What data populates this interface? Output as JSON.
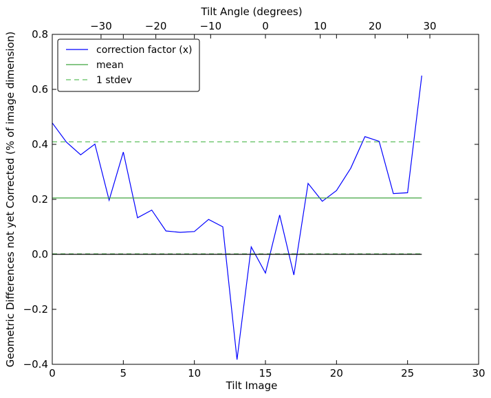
{
  "chart_data": {
    "type": "line",
    "xlabel": "Tilt Image",
    "ylabel": "Geometric Differences not yet Corrected (% of image dimension)",
    "top_xlabel": "Tilt Angle (degrees)",
    "xlim": [
      0,
      30
    ],
    "ylim": [
      -0.4,
      0.8
    ],
    "top_xlim": [
      -38.9,
      38.9
    ],
    "grid": false,
    "legend_position": "top-left",
    "x_ticks": [
      0,
      5,
      10,
      15,
      20,
      25,
      30
    ],
    "x_tick_labels": [
      "0",
      "5",
      "10",
      "15",
      "20",
      "25",
      "30"
    ],
    "y_ticks": [
      -0.4,
      -0.2,
      0.0,
      0.2,
      0.4,
      0.6,
      0.8
    ],
    "y_tick_labels": [
      "−0.4",
      "−0.2",
      "0.0",
      "0.2",
      "0.4",
      "0.6",
      "0.8"
    ],
    "top_x_ticks": [
      -30,
      -20,
      -10,
      0,
      10,
      20,
      30
    ],
    "top_x_tick_labels": [
      "−30",
      "−20",
      "−10",
      "0",
      "10",
      "20",
      "30"
    ],
    "series": [
      {
        "name": "correction factor (x)",
        "color": "#0000ff",
        "style": "solid",
        "x": [
          0,
          1,
          2,
          3,
          4,
          5,
          6,
          7,
          8,
          9,
          10,
          11,
          12,
          13,
          14,
          15,
          16,
          17,
          18,
          19,
          20,
          21,
          22,
          23,
          24,
          25,
          26
        ],
        "y": [
          0.478,
          0.408,
          0.362,
          0.401,
          0.197,
          0.372,
          0.133,
          0.161,
          0.085,
          0.08,
          0.083,
          0.127,
          0.1,
          -0.383,
          0.027,
          -0.068,
          0.143,
          -0.075,
          0.258,
          0.193,
          0.232,
          0.313,
          0.428,
          0.411,
          0.221,
          0.224,
          0.65
        ]
      },
      {
        "name": "mean",
        "color": "#3fa33f",
        "style": "solid",
        "x": [
          0,
          26
        ],
        "y": [
          0.205,
          0.205
        ]
      },
      {
        "name": "1 stdev",
        "color": "#5cbf5c",
        "style": "dashed",
        "x": [
          0,
          26
        ],
        "y": [
          0.409,
          0.409
        ]
      },
      {
        "name": "",
        "color": "#5cbf5c",
        "style": "dashed",
        "x": [
          0,
          26
        ],
        "y": [
          0.002,
          0.002
        ]
      },
      {
        "name": "",
        "color": "#000000",
        "style": "solid",
        "x": [
          0,
          26
        ],
        "y": [
          0.0,
          0.0
        ]
      }
    ]
  }
}
